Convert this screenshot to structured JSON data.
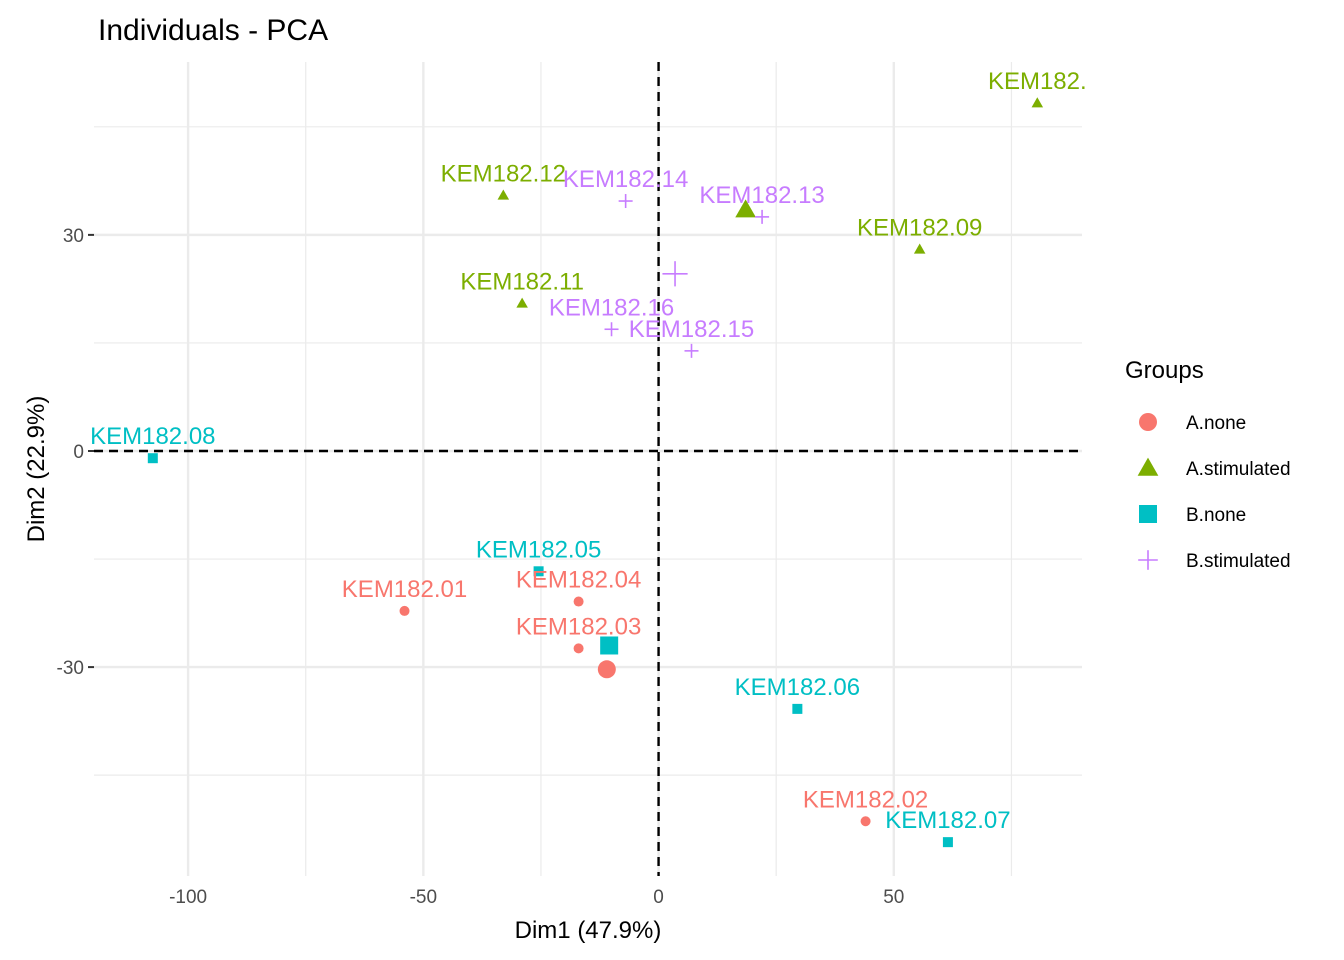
{
  "chart_data": {
    "type": "scatter",
    "title": "Individuals - PCA",
    "xlabel": "Dim1 (47.9%)",
    "ylabel": "Dim2 (22.9%)",
    "xlim": [
      -120,
      90
    ],
    "ylim": [
      -59,
      54
    ],
    "x_ticks": [
      -100,
      -50,
      0,
      50
    ],
    "y_ticks": [
      -30,
      0,
      30
    ],
    "x_tick_labels": [
      "-100",
      "-50",
      "0",
      "50"
    ],
    "y_tick_labels": [
      "-30",
      "0",
      "30"
    ],
    "grid": true,
    "reference_lines": {
      "x": 0,
      "y": 0,
      "style": "dashed"
    },
    "legend": {
      "title": "Groups",
      "placement": "right",
      "entries": [
        {
          "name": "A.none",
          "color": "#F8766D",
          "marker": "circle"
        },
        {
          "name": "A.stimulated",
          "color": "#7CAE00",
          "marker": "triangle"
        },
        {
          "name": "B.none",
          "color": "#00BFC4",
          "marker": "square"
        },
        {
          "name": "B.stimulated",
          "color": "#C77CFF",
          "marker": "plus"
        }
      ]
    },
    "series": [
      {
        "name": "A.none",
        "color": "#F8766D",
        "marker": "circle",
        "points": [
          {
            "label": "KEM182.01",
            "x": -54,
            "y": -22.2
          },
          {
            "label": "KEM182.04",
            "x": -17,
            "y": -20.9
          },
          {
            "label": "KEM182.03",
            "x": -17,
            "y": -27.4
          },
          {
            "label": "KEM182.02",
            "x": 44,
            "y": -51.4
          }
        ],
        "centroid": {
          "x": -11,
          "y": -30.3
        }
      },
      {
        "name": "A.stimulated",
        "color": "#7CAE00",
        "marker": "triangle",
        "points": [
          {
            "label": "KEM182.",
            "x": 80.5,
            "y": 48.3
          },
          {
            "label": "KEM182.12",
            "x": -33,
            "y": 35.5
          },
          {
            "label": "KEM182.09",
            "x": 55.5,
            "y": 28.0
          },
          {
            "label": "KEM182.11",
            "x": -29,
            "y": 20.5
          }
        ],
        "centroid": {
          "x": 18.5,
          "y": 33.5
        }
      },
      {
        "name": "B.none",
        "color": "#00BFC4",
        "marker": "square",
        "points": [
          {
            "label": "KEM182.08",
            "x": -107.5,
            "y": -1.0
          },
          {
            "label": "KEM182.05",
            "x": -25.5,
            "y": -16.7
          },
          {
            "label": "KEM182.06",
            "x": 29.5,
            "y": -35.8
          },
          {
            "label": "KEM182.07",
            "x": 61.5,
            "y": -54.3
          }
        ],
        "centroid": {
          "x": -10.5,
          "y": -27.0
        }
      },
      {
        "name": "B.stimulated",
        "color": "#C77CFF",
        "marker": "plus",
        "points": [
          {
            "label": "KEM182.14",
            "x": -7,
            "y": 34.7
          },
          {
            "label": "KEM182.13",
            "x": 22,
            "y": 32.5
          },
          {
            "label": "KEM182.16",
            "x": -10,
            "y": 16.9
          },
          {
            "label": "KEM182.15",
            "x": 7,
            "y": 13.9
          }
        ],
        "centroid": {
          "x": 3.5,
          "y": 24.6
        }
      }
    ]
  }
}
